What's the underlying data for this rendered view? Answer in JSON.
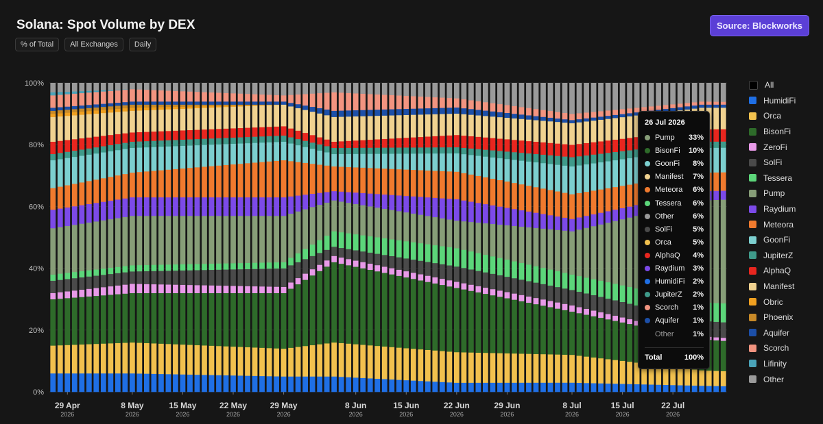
{
  "header": {
    "title": "Solana: Spot Volume by DEX",
    "source_label": "Source: Blockworks",
    "filters": [
      "% of Total",
      "All Exchanges",
      "Daily"
    ]
  },
  "legend": [
    {
      "name": "All",
      "color": "#000000"
    },
    {
      "name": "HumidiFi",
      "color": "#1f6fe5"
    },
    {
      "name": "Orca",
      "color": "#f2c14e"
    },
    {
      "name": "BisonFi",
      "color": "#2e6b2a"
    },
    {
      "name": "ZeroFi",
      "color": "#e89ae8"
    },
    {
      "name": "SolFi",
      "color": "#4a4a4a"
    },
    {
      "name": "Tessera",
      "color": "#5cd67a"
    },
    {
      "name": "Pump",
      "color": "#879e78"
    },
    {
      "name": "Raydium",
      "color": "#7c4ae8"
    },
    {
      "name": "Meteora",
      "color": "#f07a2e"
    },
    {
      "name": "GoonFi",
      "color": "#7ccfcf"
    },
    {
      "name": "JupiterZ",
      "color": "#3f9a8a"
    },
    {
      "name": "AlphaQ",
      "color": "#e8261f"
    },
    {
      "name": "Manifest",
      "color": "#f0d290"
    },
    {
      "name": "Obric",
      "color": "#f0a020"
    },
    {
      "name": "Phoenix",
      "color": "#c88a28"
    },
    {
      "name": "Aquifer",
      "color": "#1c4fa8"
    },
    {
      "name": "Scorch",
      "color": "#f29480"
    },
    {
      "name": "Lifinity",
      "color": "#4aa3b8"
    },
    {
      "name": "Other",
      "color": "#9a9a9a"
    }
  ],
  "tooltip": {
    "date": "26 Jul 2026",
    "rows": [
      {
        "name": "Pump",
        "value": "33%",
        "color": "#879e78"
      },
      {
        "name": "BisonFi",
        "value": "10%",
        "color": "#2e6b2a"
      },
      {
        "name": "GoonFi",
        "value": "8%",
        "color": "#7ccfcf"
      },
      {
        "name": "Manifest",
        "value": "7%",
        "color": "#f0d290"
      },
      {
        "name": "Meteora",
        "value": "6%",
        "color": "#f07a2e"
      },
      {
        "name": "Tessera",
        "value": "6%",
        "color": "#5cd67a"
      },
      {
        "name": "Other",
        "value": "6%",
        "color": "#9a9a9a"
      },
      {
        "name": "SolFi",
        "value": "5%",
        "color": "#4a4a4a"
      },
      {
        "name": "Orca",
        "value": "5%",
        "color": "#f2c14e"
      },
      {
        "name": "AlphaQ",
        "value": "4%",
        "color": "#e8261f"
      },
      {
        "name": "Raydium",
        "value": "3%",
        "color": "#7c4ae8"
      },
      {
        "name": "HumidiFi",
        "value": "2%",
        "color": "#1f6fe5"
      },
      {
        "name": "JupiterZ",
        "value": "2%",
        "color": "#3f9a8a"
      },
      {
        "name": "Scorch",
        "value": "1%",
        "color": "#f29480"
      },
      {
        "name": "Aquifer",
        "value": "1%",
        "color": "#1c4fa8"
      },
      {
        "name": "Other",
        "value": "1%",
        "color": null
      }
    ],
    "total_label": "Total",
    "total_value": "100%"
  },
  "chart_data": {
    "type": "bar",
    "stacked": true,
    "normalized": true,
    "title": "Solana: Spot Volume by DEX",
    "y_ticks": [
      "0%",
      "20%",
      "40%",
      "60%",
      "80%",
      "100%"
    ],
    "ylim": [
      0,
      100
    ],
    "x_ticks": [
      {
        "label": "29 Apr",
        "year": "2026",
        "day_index": 2
      },
      {
        "label": "8 May",
        "year": "2026",
        "day_index": 11
      },
      {
        "label": "15 May",
        "year": "2026",
        "day_index": 18
      },
      {
        "label": "22 May",
        "year": "2026",
        "day_index": 25
      },
      {
        "label": "29 May",
        "year": "2026",
        "day_index": 32
      },
      {
        "label": "8 Jun",
        "year": "2026",
        "day_index": 42
      },
      {
        "label": "15 Jun",
        "year": "2026",
        "day_index": 49
      },
      {
        "label": "22 Jun",
        "year": "2026",
        "day_index": 56
      },
      {
        "label": "29 Jun",
        "year": "2026",
        "day_index": 63
      },
      {
        "label": "8 Jul",
        "year": "2026",
        "day_index": 72
      },
      {
        "label": "15 Jul",
        "year": "2026",
        "day_index": 79
      },
      {
        "label": "22 Jul",
        "year": "2026",
        "day_index": 86
      }
    ],
    "x_start": "2026-04-27",
    "x_end": "2026-07-29",
    "series_order": [
      "HumidiFi",
      "Orca",
      "BisonFi",
      "ZeroFi",
      "SolFi",
      "Tessera",
      "Pump",
      "Raydium",
      "Meteora",
      "GoonFi",
      "JupiterZ",
      "AlphaQ",
      "Manifest",
      "Obric",
      "Phoenix",
      "Aquifer",
      "Scorch",
      "Lifinity",
      "Other"
    ],
    "anchors": [
      {
        "date": "2026-04-27",
        "HumidiFi": 6,
        "Orca": 9,
        "BisonFi": 15,
        "ZeroFi": 2,
        "SolFi": 4,
        "Tessera": 2,
        "Pump": 15,
        "Raydium": 6,
        "Meteora": 7,
        "GoonFi": 9,
        "JupiterZ": 2,
        "AlphaQ": 4,
        "Manifest": 8,
        "Obric": 1,
        "Phoenix": 1,
        "Aquifer": 1,
        "Scorch": 4,
        "Lifinity": 1,
        "Other": 3
      },
      {
        "date": "2026-05-08",
        "HumidiFi": 6,
        "Orca": 10,
        "BisonFi": 16,
        "ZeroFi": 3,
        "SolFi": 4,
        "Tessera": 2,
        "Pump": 16,
        "Raydium": 6,
        "Meteora": 8,
        "GoonFi": 8,
        "JupiterZ": 2,
        "AlphaQ": 3,
        "Manifest": 7,
        "Obric": 1,
        "Phoenix": 1,
        "Aquifer": 1,
        "Scorch": 4,
        "Lifinity": 0,
        "Other": 2
      },
      {
        "date": "2026-05-29",
        "HumidiFi": 5,
        "Orca": 9,
        "BisonFi": 18,
        "ZeroFi": 2,
        "SolFi": 6,
        "Tessera": 2,
        "Pump": 15,
        "Raydium": 6,
        "Meteora": 12,
        "GoonFi": 6,
        "JupiterZ": 2,
        "AlphaQ": 3,
        "Manifest": 7,
        "Obric": 0,
        "Phoenix": 0,
        "Aquifer": 1,
        "Scorch": 2,
        "Lifinity": 0,
        "Other": 4
      },
      {
        "date": "2026-06-05",
        "HumidiFi": 5,
        "Orca": 11,
        "BisonFi": 26,
        "ZeroFi": 2,
        "SolFi": 3,
        "Tessera": 5,
        "Pump": 10,
        "Raydium": 3,
        "Meteora": 8,
        "GoonFi": 4,
        "JupiterZ": 2,
        "AlphaQ": 2,
        "Manifest": 8,
        "Obric": 0,
        "Phoenix": 0,
        "Aquifer": 2,
        "Scorch": 6,
        "Lifinity": 0,
        "Other": 3
      },
      {
        "date": "2026-06-22",
        "HumidiFi": 3,
        "Orca": 10,
        "BisonFi": 21,
        "ZeroFi": 2,
        "SolFi": 5,
        "Tessera": 6,
        "Pump": 9,
        "Raydium": 7,
        "Meteora": 9,
        "GoonFi": 6,
        "JupiterZ": 2,
        "AlphaQ": 4,
        "Manifest": 7,
        "Obric": 0,
        "Phoenix": 0,
        "Aquifer": 2,
        "Scorch": 3,
        "Lifinity": 0,
        "Other": 5
      },
      {
        "date": "2026-07-08",
        "HumidiFi": 3,
        "Orca": 9,
        "BisonFi": 14,
        "ZeroFi": 2,
        "SolFi": 5,
        "Tessera": 5,
        "Pump": 14,
        "Raydium": 4,
        "Meteora": 8,
        "GoonFi": 9,
        "JupiterZ": 3,
        "AlphaQ": 4,
        "Manifest": 7,
        "Obric": 0,
        "Phoenix": 0,
        "Aquifer": 1,
        "Scorch": 2,
        "Lifinity": 0,
        "Other": 10
      },
      {
        "date": "2026-07-26",
        "HumidiFi": 2,
        "Orca": 5,
        "BisonFi": 10,
        "ZeroFi": 1,
        "SolFi": 5,
        "Tessera": 6,
        "Pump": 33,
        "Raydium": 3,
        "Meteora": 6,
        "GoonFi": 8,
        "JupiterZ": 2,
        "AlphaQ": 4,
        "Manifest": 7,
        "Obric": 0,
        "Phoenix": 0,
        "Aquifer": 1,
        "Scorch": 1,
        "Lifinity": 0,
        "Other": 6
      }
    ]
  }
}
